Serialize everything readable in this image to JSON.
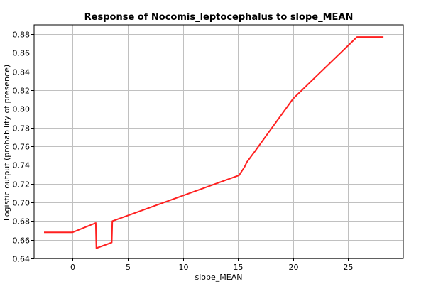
{
  "chart_data": {
    "type": "line",
    "title": "Response of Nocomis_leptocephalus to slope_MEAN",
    "xlabel": "slope_MEAN",
    "ylabel": "Logistic output (probability of presence)",
    "xlim": [
      -3.5,
      30
    ],
    "ylim": [
      0.64,
      0.89
    ],
    "x_ticks": [
      0,
      5,
      10,
      15,
      20,
      25
    ],
    "y_ticks": [
      0.64,
      0.66,
      0.68,
      0.7,
      0.72,
      0.74,
      0.76,
      0.78,
      0.8,
      0.82,
      0.84,
      0.86,
      0.88
    ],
    "x_tick_labels": [
      "0",
      "5",
      "10",
      "15",
      "20",
      "25"
    ],
    "y_tick_labels": [
      "0.64",
      "0.66",
      "0.68",
      "0.70",
      "0.72",
      "0.74",
      "0.76",
      "0.78",
      "0.80",
      "0.82",
      "0.84",
      "0.86",
      "0.88"
    ],
    "grid": true,
    "legend": "none",
    "series": [
      {
        "color": "#ff2020",
        "x": [
          -2.6,
          0.0,
          2.1,
          2.15,
          3.55,
          3.6,
          15.1,
          15.6,
          15.8,
          16.5,
          20.0,
          25.8,
          28.2
        ],
        "y": [
          0.668,
          0.668,
          0.678,
          0.651,
          0.657,
          0.68,
          0.729,
          0.738,
          0.743,
          0.754,
          0.811,
          0.877,
          0.877
        ]
      }
    ]
  }
}
